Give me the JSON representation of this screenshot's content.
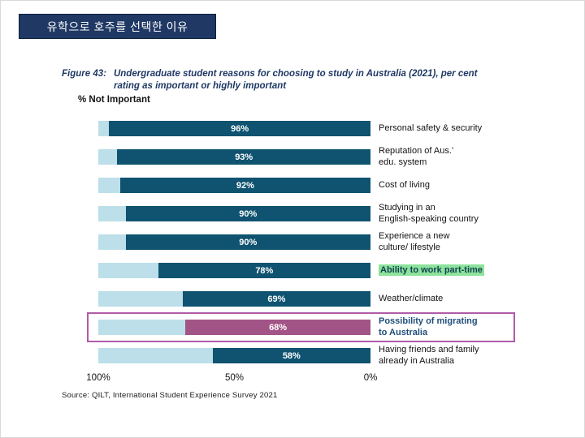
{
  "slide": {
    "title": "유학으로 호주를 선택한 이유"
  },
  "figure": {
    "label": "Figure 43:",
    "caption_line1": "Undergraduate student reasons for choosing to study in Australia (2021), per cent",
    "caption_line2": "rating as important or highly important",
    "axis_note": "% Not Important",
    "source": "Source: QILT, International Student Experience Survey 2021"
  },
  "colors": {
    "navy": "#1f3864",
    "dark_teal": "#0f5370",
    "light_blue": "#bcdfe9",
    "purple_bar": "#a25487",
    "purple_box": "#b05ba8",
    "green_highlight": "#8ce39b"
  },
  "chart_data": {
    "type": "bar",
    "subtype": "horizontal_stacked_100_percent",
    "title": "Figure 43: Undergraduate student reasons for choosing to study in Australia (2021), per cent rating as important or highly important",
    "axis_reversed": true,
    "x_ticks": [
      "100%",
      "50%",
      "0%"
    ],
    "xlim": [
      100,
      0
    ],
    "grid": false,
    "legend_position": "none",
    "series_note": "Dark segment = per cent rating important or highly important; light segment = per cent not important",
    "categories": [
      "Personal safety & security",
      "Reputation of Aus.’ edu. system",
      "Cost of living",
      "Studying in an English-speaking country",
      "Experience a new culture/ lifestyle",
      "Ability to work part-time",
      "Weather/climate",
      "Possibility of migrating to Australia",
      "Having friends and family already in Australia"
    ],
    "values": [
      96,
      93,
      92,
      90,
      90,
      78,
      69,
      68,
      58
    ],
    "bars": [
      {
        "pct": 96,
        "value_label": "96%",
        "label_lines": [
          "Personal safety & security"
        ],
        "style": "normal"
      },
      {
        "pct": 93,
        "value_label": "93%",
        "label_lines": [
          "Reputation of Aus.’",
          "edu. system"
        ],
        "style": "normal"
      },
      {
        "pct": 92,
        "value_label": "92%",
        "label_lines": [
          "Cost of living"
        ],
        "style": "normal"
      },
      {
        "pct": 90,
        "value_label": "90%",
        "label_lines": [
          "Studying in an",
          "English-speaking country"
        ],
        "style": "normal"
      },
      {
        "pct": 90,
        "value_label": "90%",
        "label_lines": [
          "Experience a new",
          "culture/ lifestyle"
        ],
        "style": "normal"
      },
      {
        "pct": 78,
        "value_label": "78%",
        "label_lines": [
          "Ability to work part-time"
        ],
        "style": "green-highlight"
      },
      {
        "pct": 69,
        "value_label": "69%",
        "label_lines": [
          "Weather/climate"
        ],
        "style": "normal"
      },
      {
        "pct": 68,
        "value_label": "68%",
        "label_lines": [
          "Possibility of migrating",
          "to Australia"
        ],
        "style": "migrate-boxed"
      },
      {
        "pct": 58,
        "value_label": "58%",
        "label_lines": [
          "Having friends and family",
          "already in Australia"
        ],
        "style": "normal"
      }
    ]
  }
}
